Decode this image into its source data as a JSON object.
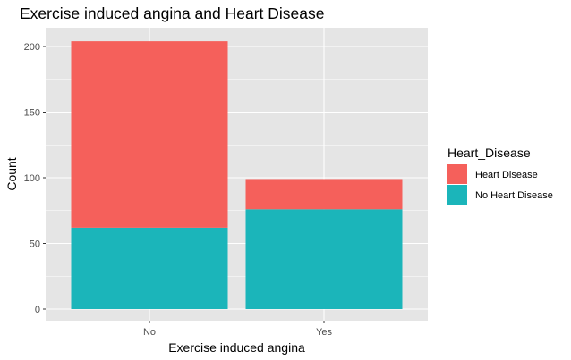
{
  "chart_data": {
    "type": "bar",
    "stacked": true,
    "title": "Exercise induced angina and Heart Disease",
    "xlabel": "Exercise induced angina",
    "ylabel": "Count",
    "categories": [
      "No",
      "Yes"
    ],
    "series": [
      {
        "name": "No Heart Disease",
        "values": [
          62,
          76
        ],
        "color": "#1bb5ba"
      },
      {
        "name": "Heart Disease",
        "values": [
          142,
          23
        ],
        "color": "#f5605b"
      }
    ],
    "ylim": [
      0,
      214
    ],
    "yticks": [
      0,
      50,
      100,
      150,
      200
    ],
    "grid": true,
    "legend": {
      "title": "Heart_Disease",
      "position": "right",
      "items": [
        {
          "label": "Heart Disease",
          "color": "#f5605b"
        },
        {
          "label": "No Heart Disease",
          "color": "#1bb5ba"
        }
      ]
    },
    "panel_background": "#e5e5e5",
    "gridline_color": "#ffffff"
  }
}
